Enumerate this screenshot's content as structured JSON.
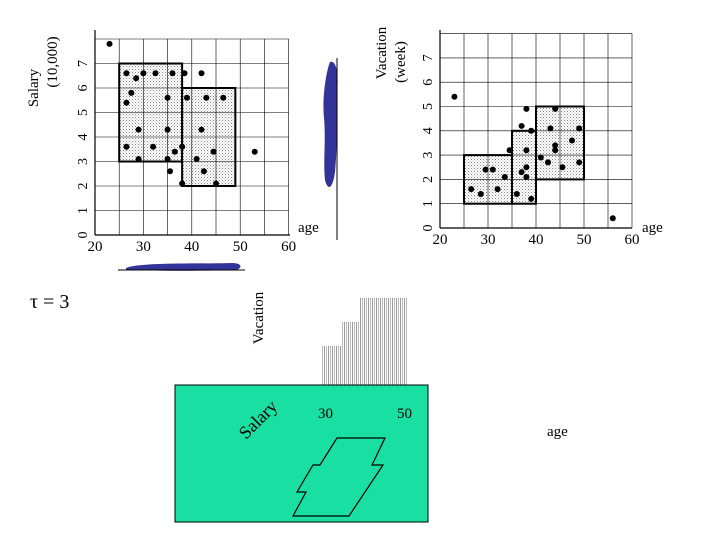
{
  "left_plot": {
    "y_title_line1": "Salary",
    "y_title_line2": "(10,000)",
    "y_ticks": [
      "0",
      "1",
      "2",
      "3",
      "4",
      "5",
      "6",
      "7"
    ],
    "x_ticks": [
      "20",
      "30",
      "40",
      "50",
      "60"
    ],
    "x_title": "age",
    "outlier": [
      23,
      7.8
    ],
    "dense_cells": {
      "top_region": {
        "x": [
          25,
          38
        ],
        "y": [
          3,
          7
        ]
      },
      "middle_region": {
        "x": [
          38,
          49
        ],
        "y": [
          2,
          6
        ]
      }
    },
    "points": [
      [
        26.5,
        6.6
      ],
      [
        28.5,
        6.4
      ],
      [
        30,
        6.6
      ],
      [
        32.5,
        6.6
      ],
      [
        36,
        6.6
      ],
      [
        38.5,
        6.6
      ],
      [
        42,
        6.6
      ],
      [
        27.5,
        5.8
      ],
      [
        26.5,
        5.4
      ],
      [
        35,
        5.6
      ],
      [
        39,
        5.6
      ],
      [
        43,
        5.6
      ],
      [
        46.5,
        5.6
      ],
      [
        29,
        4.3
      ],
      [
        35,
        4.3
      ],
      [
        42,
        4.3
      ],
      [
        26.5,
        3.6
      ],
      [
        32,
        3.6
      ],
      [
        36.5,
        3.4
      ],
      [
        38,
        3.6
      ],
      [
        44.5,
        3.4
      ],
      [
        29,
        3.1
      ],
      [
        35,
        3.1
      ],
      [
        41,
        3.1
      ],
      [
        35.5,
        2.6
      ],
      [
        42.5,
        2.6
      ],
      [
        38,
        2.1
      ],
      [
        45,
        2.1
      ],
      [
        53,
        3.4
      ]
    ]
  },
  "right_plot": {
    "y_title_line1": "Vacation",
    "y_title_line2": "(week)",
    "y_ticks": [
      "0",
      "1",
      "2",
      "3",
      "4",
      "5",
      "6",
      "7"
    ],
    "x_ticks": [
      "20",
      "30",
      "40",
      "50",
      "60"
    ],
    "x_title": "age",
    "outlier_top": [
      23,
      5.4
    ],
    "outlier_bottom": [
      56,
      0.4
    ],
    "dense_cells": {
      "region_a": {
        "x": [
          25,
          35
        ],
        "y": [
          1,
          3
        ]
      },
      "region_b": {
        "x": [
          35,
          40
        ],
        "y": [
          1,
          4
        ]
      },
      "region_c": {
        "x": [
          40,
          50
        ],
        "y": [
          2,
          5
        ]
      }
    },
    "points": [
      [
        38,
        4.9
      ],
      [
        44,
        4.9
      ],
      [
        37,
        4.2
      ],
      [
        39,
        4.0
      ],
      [
        43,
        4.1
      ],
      [
        49,
        4.1
      ],
      [
        47.5,
        3.6
      ],
      [
        34.5,
        3.2
      ],
      [
        38,
        3.2
      ],
      [
        41,
        2.9
      ],
      [
        44,
        3.2
      ],
      [
        44,
        3.4
      ],
      [
        42.5,
        2.7
      ],
      [
        49,
        2.7
      ],
      [
        45.5,
        2.5
      ],
      [
        26.5,
        1.6
      ],
      [
        28.5,
        1.4
      ],
      [
        29.5,
        2.4
      ],
      [
        31,
        2.4
      ],
      [
        32,
        1.6
      ],
      [
        33.5,
        2.1
      ],
      [
        37,
        2.3
      ],
      [
        36,
        1.4
      ],
      [
        38,
        2.5
      ],
      [
        38,
        2.1
      ],
      [
        39,
        1.2
      ]
    ]
  },
  "tau_label": "τ = 3",
  "vacation_label": "Vacation",
  "cube": {
    "salary_label": "Salary",
    "tick_30": "30",
    "tick_50": "50",
    "age_label": "age"
  },
  "colors": {
    "face": "#19e0a2",
    "blob": "#333399",
    "dense_fill": "#d8d8d8",
    "grid": "#000000"
  }
}
